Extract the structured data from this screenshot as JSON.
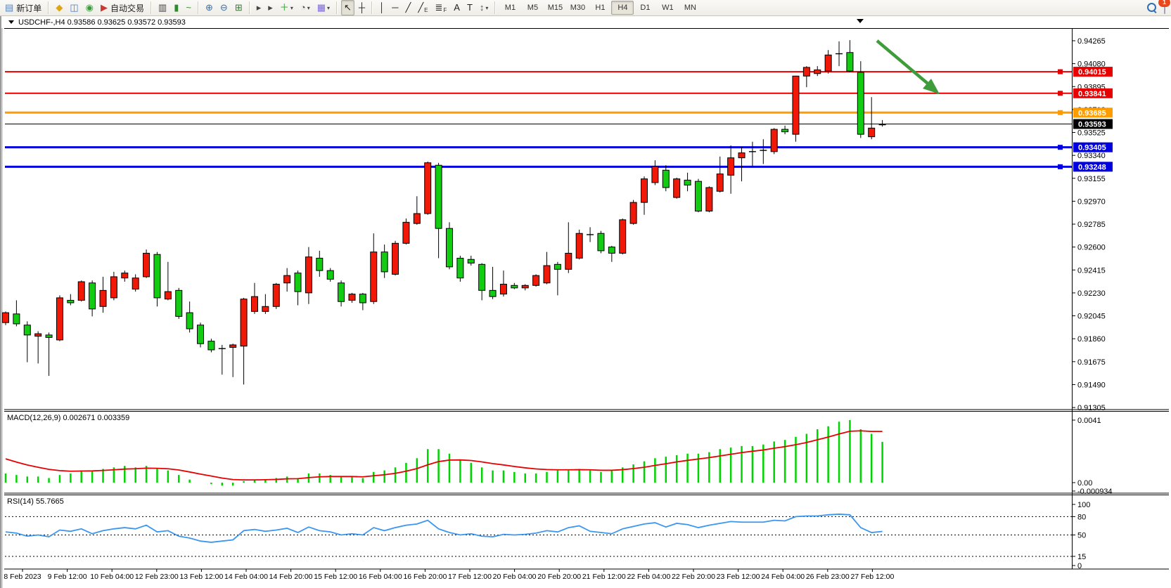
{
  "toolbar": {
    "buttons": [
      {
        "name": "new-order-button",
        "glyph": "▤",
        "color": "#5b83b8",
        "label": "新订单"
      },
      {
        "name": "separator"
      },
      {
        "name": "gold-indicator-button",
        "glyph": "◆",
        "color": "#dfa511"
      },
      {
        "name": "profile-chart-button",
        "glyph": "◫",
        "color": "#4a7dc0"
      },
      {
        "name": "signal-service-button",
        "glyph": "◉",
        "color": "#35a135"
      },
      {
        "name": "autotrade-button",
        "glyph": "▶",
        "color": "#cc3b33",
        "label": "自动交易"
      },
      {
        "name": "separator"
      },
      {
        "name": "bar-chart-button",
        "glyph": "▥",
        "color": "#444444"
      },
      {
        "name": "candlestick-chart-button",
        "glyph": "▮",
        "color": "#2e8b2e"
      },
      {
        "name": "line-chart-button",
        "glyph": "~",
        "color": "#2e8b2e"
      },
      {
        "name": "separator"
      },
      {
        "name": "zoom-in-button",
        "glyph": "⊕",
        "color": "#3a6ea5"
      },
      {
        "name": "zoom-out-button",
        "glyph": "⊖",
        "color": "#3a6ea5"
      },
      {
        "name": "tile-windows-button",
        "glyph": "⊞",
        "color": "#2f7d32"
      },
      {
        "name": "separator"
      },
      {
        "name": "auto-scroll-button",
        "glyph": "▸",
        "color": "#444444"
      },
      {
        "name": "chart-shift-button",
        "glyph": "▸",
        "color": "#444444"
      },
      {
        "name": "indicators-button",
        "glyph": "＋",
        "color": "#2f9e2f",
        "caret": true
      },
      {
        "name": "periods-clock-button",
        "glyph": "◔",
        "color": "#555555",
        "caret": true
      },
      {
        "name": "template-button",
        "glyph": "▦",
        "color": "#7a6ad0",
        "caret": true
      },
      {
        "name": "separator"
      },
      {
        "name": "cursor-button",
        "glyph": "↖",
        "color": "#222222",
        "active": true
      },
      {
        "name": "crosshair-button",
        "glyph": "┼",
        "color": "#222222"
      },
      {
        "name": "separator"
      },
      {
        "name": "vertical-line-button",
        "glyph": "│",
        "color": "#222222"
      },
      {
        "name": "horizontal-line-button",
        "glyph": "─",
        "color": "#222222"
      },
      {
        "name": "trendline-button",
        "glyph": "╱",
        "color": "#222222"
      },
      {
        "name": "channel-button",
        "glyph": "╱",
        "sub": "E",
        "color": "#222222"
      },
      {
        "name": "fibonacci-button",
        "glyph": "≣",
        "sub": "F",
        "color": "#222222"
      },
      {
        "name": "text-button",
        "glyph": "A",
        "color": "#222222"
      },
      {
        "name": "text-label-button",
        "glyph": "T",
        "color": "#222222"
      },
      {
        "name": "arrows-tool-button",
        "glyph": "↕",
        "color": "#555555",
        "caret": true
      },
      {
        "name": "separator"
      }
    ],
    "timeframes": [
      "M1",
      "M5",
      "M15",
      "M30",
      "H1",
      "H4",
      "D1",
      "W1",
      "MN"
    ],
    "active_timeframe": "H4",
    "notification_count": "1"
  },
  "window": {
    "title": "USDCHF-,H4  0.93586 0.93625 0.93572 0.93593",
    "symbol": "USDCHF-",
    "period": "H4"
  },
  "chart_data": {
    "type": "candlestick",
    "symbol": "USDCHF",
    "period": "H4",
    "current_price": "0.93593",
    "ohlc_display": {
      "open": "0.93586",
      "high": "0.93625",
      "low": "0.93572",
      "close": "0.93593"
    },
    "price_axis_ticks": [
      "0.94265",
      "0.94080",
      "0.93895",
      "0.93710",
      "0.93525",
      "0.93340",
      "0.93155",
      "0.92970",
      "0.92785",
      "0.92600",
      "0.92415",
      "0.92230",
      "0.92045",
      "0.91860",
      "0.91675",
      "0.91490",
      "0.91305"
    ],
    "hlines": [
      {
        "label": "0.94015",
        "price": 0.94015,
        "color": "#e60000",
        "width": 2
      },
      {
        "label": "0.93841",
        "price": 0.93841,
        "color": "#e60000",
        "width": 2
      },
      {
        "label": "0.93685",
        "price": 0.93685,
        "color": "#ff9c00",
        "width": 3
      },
      {
        "label": "0.93593",
        "price": 0.93593,
        "color": "#000000",
        "width": 1,
        "is_current_price": true
      },
      {
        "label": "0.93405",
        "price": 0.93405,
        "color": "#0000e0",
        "width": 3
      },
      {
        "label": "0.93248",
        "price": 0.93248,
        "color": "#0000e0",
        "width": 3
      }
    ],
    "candles": [
      [
        0.9199,
        0.9208,
        0.9197,
        0.9207
      ],
      [
        0.9206,
        0.9217,
        0.9196,
        0.9198
      ],
      [
        0.9197,
        0.92,
        0.9167,
        0.9189
      ],
      [
        0.9188,
        0.9192,
        0.9166,
        0.919
      ],
      [
        0.9189,
        0.9191,
        0.9156,
        0.9187
      ],
      [
        0.9185,
        0.9221,
        0.9184,
        0.9219
      ],
      [
        0.9217,
        0.9222,
        0.9213,
        0.9215
      ],
      [
        0.9217,
        0.9233,
        0.9216,
        0.9232
      ],
      [
        0.9231,
        0.9233,
        0.9204,
        0.921
      ],
      [
        0.9212,
        0.9236,
        0.9207,
        0.9225
      ],
      [
        0.9219,
        0.924,
        0.9217,
        0.9236
      ],
      [
        0.9235,
        0.9241,
        0.9232,
        0.9239
      ],
      [
        0.9226,
        0.9238,
        0.9224,
        0.9235
      ],
      [
        0.9236,
        0.9258,
        0.9235,
        0.9255
      ],
      [
        0.9254,
        0.9256,
        0.9212,
        0.9219
      ],
      [
        0.9218,
        0.9248,
        0.9217,
        0.9224
      ],
      [
        0.9225,
        0.9227,
        0.9202,
        0.9204
      ],
      [
        0.9207,
        0.9216,
        0.9191,
        0.9194
      ],
      [
        0.9197,
        0.9199,
        0.9179,
        0.9182
      ],
      [
        0.9184,
        0.9186,
        0.9175,
        0.9177
      ],
      [
        0.9178,
        0.9181,
        0.9157,
        0.9178
      ],
      [
        0.9179,
        0.9182,
        0.9155,
        0.9181
      ],
      [
        0.918,
        0.9219,
        0.9149,
        0.9218
      ],
      [
        0.9208,
        0.9231,
        0.9206,
        0.922
      ],
      [
        0.9208,
        0.9222,
        0.9206,
        0.9212
      ],
      [
        0.9212,
        0.9231,
        0.921,
        0.923
      ],
      [
        0.9231,
        0.9243,
        0.9224,
        0.9237
      ],
      [
        0.9239,
        0.9241,
        0.9213,
        0.9224
      ],
      [
        0.9223,
        0.926,
        0.9214,
        0.9252
      ],
      [
        0.9251,
        0.9257,
        0.9236,
        0.9241
      ],
      [
        0.9241,
        0.9243,
        0.9232,
        0.9234
      ],
      [
        0.9231,
        0.9233,
        0.9212,
        0.9216
      ],
      [
        0.9217,
        0.9223,
        0.9215,
        0.9222
      ],
      [
        0.9222,
        0.9223,
        0.9209,
        0.9215
      ],
      [
        0.9216,
        0.9271,
        0.9214,
        0.9256
      ],
      [
        0.9256,
        0.9262,
        0.9235,
        0.924
      ],
      [
        0.9238,
        0.9265,
        0.9237,
        0.9263
      ],
      [
        0.9263,
        0.9283,
        0.9262,
        0.928
      ],
      [
        0.9279,
        0.9301,
        0.9278,
        0.9287
      ],
      [
        0.9287,
        0.9329,
        0.9286,
        0.9328
      ],
      [
        0.9326,
        0.9328,
        0.9251,
        0.9275
      ],
      [
        0.9275,
        0.928,
        0.9242,
        0.9244
      ],
      [
        0.9251,
        0.9253,
        0.9232,
        0.9235
      ],
      [
        0.925,
        0.9253,
        0.9245,
        0.9247
      ],
      [
        0.9246,
        0.9247,
        0.9217,
        0.9225
      ],
      [
        0.9225,
        0.9244,
        0.9218,
        0.922
      ],
      [
        0.9222,
        0.9241,
        0.922,
        0.923
      ],
      [
        0.9229,
        0.9231,
        0.9226,
        0.9227
      ],
      [
        0.9227,
        0.923,
        0.9225,
        0.9229
      ],
      [
        0.9229,
        0.9238,
        0.9228,
        0.9237
      ],
      [
        0.9231,
        0.9256,
        0.923,
        0.9245
      ],
      [
        0.9246,
        0.9248,
        0.9221,
        0.9242
      ],
      [
        0.9242,
        0.928,
        0.9239,
        0.9255
      ],
      [
        0.9251,
        0.9274,
        0.925,
        0.9271
      ],
      [
        0.927,
        0.9276,
        0.9264,
        0.927
      ],
      [
        0.9271,
        0.9273,
        0.9255,
        0.9257
      ],
      [
        0.926,
        0.9261,
        0.9248,
        0.9255
      ],
      [
        0.9255,
        0.9283,
        0.9254,
        0.9282
      ],
      [
        0.9279,
        0.9298,
        0.9278,
        0.9296
      ],
      [
        0.9296,
        0.9317,
        0.9286,
        0.9315
      ],
      [
        0.9312,
        0.933,
        0.931,
        0.9325
      ],
      [
        0.9322,
        0.9326,
        0.9305,
        0.9308
      ],
      [
        0.93,
        0.9316,
        0.9299,
        0.9315
      ],
      [
        0.9314,
        0.932,
        0.9305,
        0.931
      ],
      [
        0.9313,
        0.9315,
        0.9288,
        0.9289
      ],
      [
        0.9289,
        0.9309,
        0.9288,
        0.9308
      ],
      [
        0.9305,
        0.9333,
        0.9304,
        0.9319
      ],
      [
        0.9318,
        0.9342,
        0.9303,
        0.9332
      ],
      [
        0.9332,
        0.9341,
        0.9313,
        0.9336
      ],
      [
        0.9337,
        0.9345,
        0.9325,
        0.9337
      ],
      [
        0.9338,
        0.9347,
        0.9327,
        0.9338
      ],
      [
        0.9337,
        0.9356,
        0.9335,
        0.9355
      ],
      [
        0.9355,
        0.9358,
        0.9351,
        0.9353
      ],
      [
        0.9351,
        0.9398,
        0.9345,
        0.9398
      ],
      [
        0.9398,
        0.9406,
        0.9389,
        0.9405
      ],
      [
        0.94,
        0.9406,
        0.9398,
        0.9403
      ],
      [
        0.9402,
        0.9419,
        0.94,
        0.9415
      ],
      [
        0.9416,
        0.9426,
        0.9406,
        0.9416
      ],
      [
        0.9417,
        0.9427,
        0.9401,
        0.9402
      ],
      [
        0.9401,
        0.941,
        0.9348,
        0.9351
      ],
      [
        0.9349,
        0.9381,
        0.9347,
        0.9356
      ],
      [
        0.93586,
        0.93625,
        0.93572,
        0.93593
      ]
    ],
    "time_axis_labels": [
      "8 Feb 2023",
      "9 Feb 12:00",
      "10 Feb 04:00",
      "12 Feb 23:00",
      "13 Feb 12:00",
      "14 Feb 04:00",
      "14 Feb 20:00",
      "15 Feb 12:00",
      "16 Feb 04:00",
      "16 Feb 20:00",
      "17 Feb 12:00",
      "20 Feb 04:00",
      "20 Feb 20:00",
      "21 Feb 12:00",
      "22 Feb 04:00",
      "22 Feb 20:00",
      "23 Feb 12:00",
      "24 Feb 04:00",
      "26 Feb 23:00",
      "27 Feb 12:00"
    ],
    "annotation_arrow": {
      "color": "#3f9c3a",
      "direction": "down-right"
    },
    "macd": {
      "label": "MACD(12,26,9)",
      "main_value": "0.002671",
      "signal_value": "0.003359",
      "axis_ticks": [
        "0.0041",
        "0.00",
        "-0.000934"
      ],
      "histogram": [
        0.0006,
        0.0005,
        0.0004,
        0.0004,
        0.0003,
        0.0005,
        0.0006,
        0.0008,
        0.0008,
        0.0009,
        0.001,
        0.0011,
        0.001,
        0.0011,
        0.0009,
        0.0008,
        0.0005,
        0.0002,
        0.0,
        -0.0001,
        -0.0002,
        -0.0002,
        0.0001,
        0.0002,
        0.0002,
        0.0003,
        0.0004,
        0.0003,
        0.0006,
        0.0006,
        0.0005,
        0.0004,
        0.0004,
        0.0003,
        0.0007,
        0.0008,
        0.001,
        0.0013,
        0.0016,
        0.0022,
        0.0022,
        0.0019,
        0.0015,
        0.0013,
        0.001,
        0.0008,
        0.0008,
        0.0007,
        0.0006,
        0.0006,
        0.0007,
        0.0008,
        0.0008,
        0.0009,
        0.0008,
        0.0007,
        0.0008,
        0.001,
        0.0012,
        0.0014,
        0.0016,
        0.0017,
        0.0018,
        0.0019,
        0.0019,
        0.002,
        0.0022,
        0.0023,
        0.0024,
        0.0024,
        0.0025,
        0.0027,
        0.0028,
        0.003,
        0.0032,
        0.0035,
        0.0037,
        0.004,
        0.0041,
        0.0035,
        0.0032,
        0.002671
      ],
      "signal": [
        0.00156,
        0.00135,
        0.00116,
        0.00101,
        0.00087,
        0.00079,
        0.00075,
        0.00076,
        0.00077,
        0.0008,
        0.00084,
        0.00089,
        0.00091,
        0.00095,
        0.00094,
        0.00091,
        0.00083,
        0.0007,
        0.00056,
        0.00043,
        0.0003,
        0.0002,
        0.00018,
        0.00018,
        0.00019,
        0.00021,
        0.00025,
        0.00026,
        0.00033,
        0.00038,
        0.0004,
        0.0004,
        0.0004,
        0.00038,
        0.00045,
        0.00052,
        0.00061,
        0.00075,
        0.00092,
        0.00117,
        0.00138,
        0.00148,
        0.00149,
        0.00145,
        0.00136,
        0.00125,
        0.00116,
        0.00106,
        0.00097,
        0.0009,
        0.00086,
        0.00084,
        0.00084,
        0.00085,
        0.00084,
        0.00081,
        0.00081,
        0.00085,
        0.00092,
        0.00101,
        0.00113,
        0.00124,
        0.00136,
        0.00146,
        0.00155,
        0.00164,
        0.00175,
        0.00186,
        0.00197,
        0.00206,
        0.00214,
        0.00226,
        0.00236,
        0.00249,
        0.00263,
        0.00281,
        0.00299,
        0.00319,
        0.00337,
        0.0034,
        0.00336,
        0.003359
      ]
    },
    "rsi": {
      "label": "RSI(14)",
      "value": "55.7665",
      "axis_ticks": [
        "100",
        "80",
        "50",
        "15",
        "0"
      ],
      "dashed_levels": [
        80,
        50,
        15
      ],
      "values": [
        55,
        53,
        48,
        50,
        47,
        58,
        56,
        60,
        52,
        57,
        60,
        62,
        60,
        66,
        55,
        57,
        48,
        45,
        40,
        38,
        40,
        42,
        57,
        59,
        56,
        58,
        61,
        54,
        63,
        57,
        55,
        50,
        52,
        50,
        62,
        57,
        62,
        66,
        68,
        74,
        60,
        54,
        50,
        52,
        48,
        47,
        51,
        50,
        51,
        53,
        57,
        55,
        62,
        65,
        56,
        54,
        52,
        60,
        64,
        68,
        70,
        63,
        69,
        67,
        62,
        66,
        69,
        72,
        71,
        71,
        71,
        74,
        73,
        80,
        81,
        81,
        83,
        84,
        83,
        62,
        54,
        55.7665
      ]
    }
  },
  "colors": {
    "bull_candle": "#f21808",
    "bear_candle": "#12cc12",
    "candle_outline": "#000000",
    "macd_histogram": "#00d400",
    "macd_signal": "#e60000",
    "rsi_line": "#3b96f0",
    "resistance_line": "#e60000",
    "support_line": "#0000e0",
    "pivot_line": "#ff9c00",
    "arrow": "#3f9c3a",
    "badge_notification": "#e8481c"
  }
}
